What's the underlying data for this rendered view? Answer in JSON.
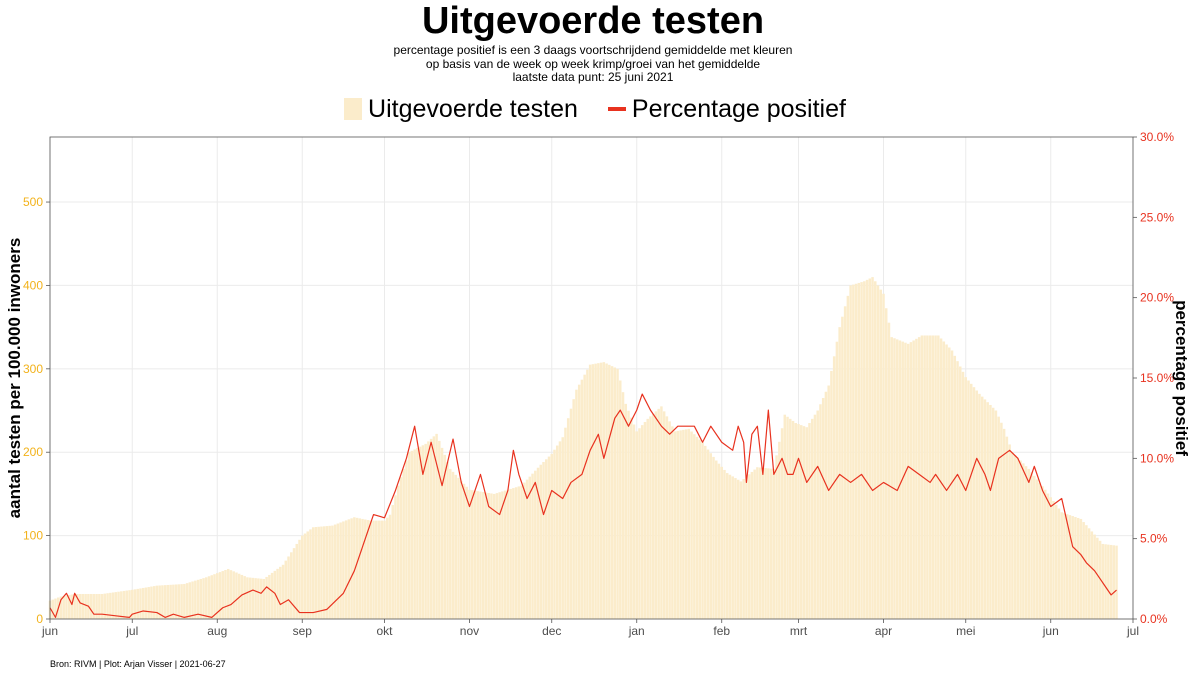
{
  "header": {
    "title": "Uitgevoerde testen",
    "subtitle_lines": [
      "percentage positief is een 3 daags voortschrijdend gemiddelde met kleuren",
      "op basis van de week op week krimp/groei van het gemiddelde",
      "laatste data punt: 25 juni 2021"
    ]
  },
  "legend": {
    "bars_label": "Uitgevoerde testen",
    "line_label": "Percentage positief"
  },
  "caption": "Bron: RIVM | Plot: Arjan Visser | 2021-06-27",
  "colors": {
    "bars": "#fbeccb",
    "line": "#e8321f",
    "left_axis_ticks": "#f2b21b",
    "right_axis_ticks": "#e8321f",
    "grid": "#ebebeb"
  },
  "chart_data": {
    "type": "bar+line",
    "x_axis": {
      "unit": "day",
      "start": "2020-06-01",
      "end": "2021-07-01",
      "tick_dates": [
        "2020-06-01",
        "2020-07-01",
        "2020-08-01",
        "2020-09-01",
        "2020-10-01",
        "2020-11-01",
        "2020-12-01",
        "2021-01-01",
        "2021-02-01",
        "2021-03-01",
        "2021-04-01",
        "2021-05-01",
        "2021-06-01",
        "2021-07-01"
      ],
      "tick_labels": [
        "jun",
        "jul",
        "aug",
        "sep",
        "okt",
        "nov",
        "dec",
        "jan",
        "feb",
        "mrt",
        "apr",
        "mei",
        "jun",
        "jul"
      ]
    },
    "y_left": {
      "label": "aantal testen per 100.000 inwoners",
      "ylim": [
        0,
        578
      ],
      "ticks": [
        0,
        100,
        200,
        300,
        400,
        500
      ],
      "tick_labels": [
        "0",
        "100",
        "200",
        "300",
        "400",
        "500"
      ]
    },
    "y_right": {
      "label": "percentage positief",
      "ylim": [
        0,
        30
      ],
      "ticks": [
        0,
        5,
        10,
        15,
        20,
        25,
        30
      ],
      "tick_labels": [
        "0.0%",
        "5.0%",
        "10.0%",
        "15.0%",
        "20.0%",
        "25.0%",
        "30.0%"
      ]
    },
    "grid": true,
    "legend_position": "top",
    "series": [
      {
        "name": "Uitgevoerde testen",
        "type": "bar",
        "axis": "left",
        "points": [
          [
            "2020-06-01",
            22
          ],
          [
            "2020-06-05",
            27
          ],
          [
            "2020-06-10",
            30
          ],
          [
            "2020-06-20",
            30
          ],
          [
            "2020-07-01",
            35
          ],
          [
            "2020-07-10",
            40
          ],
          [
            "2020-07-20",
            42
          ],
          [
            "2020-07-28",
            50
          ],
          [
            "2020-08-05",
            60
          ],
          [
            "2020-08-12",
            50
          ],
          [
            "2020-08-18",
            48
          ],
          [
            "2020-08-25",
            65
          ],
          [
            "2020-09-01",
            100
          ],
          [
            "2020-09-05",
            110
          ],
          [
            "2020-09-12",
            112
          ],
          [
            "2020-09-20",
            122
          ],
          [
            "2020-09-26",
            118
          ],
          [
            "2020-10-01",
            118
          ],
          [
            "2020-10-03",
            125
          ],
          [
            "2020-10-06",
            160
          ],
          [
            "2020-10-10",
            200
          ],
          [
            "2020-10-16",
            210
          ],
          [
            "2020-10-20",
            222
          ],
          [
            "2020-10-25",
            180
          ],
          [
            "2020-11-01",
            155
          ],
          [
            "2020-11-10",
            150
          ],
          [
            "2020-11-20",
            160
          ],
          [
            "2020-11-27",
            185
          ],
          [
            "2020-12-01",
            198
          ],
          [
            "2020-12-05",
            218
          ],
          [
            "2020-12-10",
            275
          ],
          [
            "2020-12-15",
            305
          ],
          [
            "2020-12-20",
            308
          ],
          [
            "2020-12-25",
            300
          ],
          [
            "2020-12-28",
            258
          ],
          [
            "2021-01-01",
            225
          ],
          [
            "2021-01-05",
            240
          ],
          [
            "2021-01-10",
            255
          ],
          [
            "2021-01-15",
            225
          ],
          [
            "2021-01-20",
            228
          ],
          [
            "2021-01-25",
            212
          ],
          [
            "2021-01-30",
            190
          ],
          [
            "2021-02-03",
            175
          ],
          [
            "2021-02-08",
            165
          ],
          [
            "2021-02-14",
            182
          ],
          [
            "2021-02-20",
            180
          ],
          [
            "2021-02-24",
            245
          ],
          [
            "2021-02-28",
            235
          ],
          [
            "2021-03-04",
            230
          ],
          [
            "2021-03-08",
            250
          ],
          [
            "2021-03-12",
            280
          ],
          [
            "2021-03-16",
            350
          ],
          [
            "2021-03-20",
            400
          ],
          [
            "2021-03-25",
            405
          ],
          [
            "2021-03-28",
            410
          ],
          [
            "2021-04-01",
            390
          ],
          [
            "2021-04-04",
            338
          ],
          [
            "2021-04-10",
            330
          ],
          [
            "2021-04-15",
            340
          ],
          [
            "2021-04-21",
            340
          ],
          [
            "2021-04-26",
            322
          ],
          [
            "2021-05-01",
            290
          ],
          [
            "2021-05-06",
            270
          ],
          [
            "2021-05-12",
            250
          ],
          [
            "2021-05-15",
            228
          ],
          [
            "2021-05-18",
            200
          ],
          [
            "2021-05-24",
            180
          ],
          [
            "2021-05-30",
            155
          ],
          [
            "2021-06-05",
            128
          ],
          [
            "2021-06-12",
            120
          ],
          [
            "2021-06-16",
            105
          ],
          [
            "2021-06-20",
            90
          ],
          [
            "2021-06-25",
            88
          ]
        ]
      },
      {
        "name": "Percentage positief",
        "type": "line",
        "axis": "right",
        "points": [
          [
            "2020-06-01",
            0.7
          ],
          [
            "2020-06-03",
            0.1
          ],
          [
            "2020-06-05",
            1.2
          ],
          [
            "2020-06-07",
            1.6
          ],
          [
            "2020-06-09",
            0.9
          ],
          [
            "2020-06-10",
            1.6
          ],
          [
            "2020-06-12",
            1.0
          ],
          [
            "2020-06-15",
            0.8
          ],
          [
            "2020-06-17",
            0.3
          ],
          [
            "2020-06-20",
            0.3
          ],
          [
            "2020-06-25",
            0.2
          ],
          [
            "2020-06-30",
            0.1
          ],
          [
            "2020-07-01",
            0.3
          ],
          [
            "2020-07-05",
            0.5
          ],
          [
            "2020-07-10",
            0.4
          ],
          [
            "2020-07-13",
            0.1
          ],
          [
            "2020-07-16",
            0.3
          ],
          [
            "2020-07-20",
            0.1
          ],
          [
            "2020-07-25",
            0.3
          ],
          [
            "2020-07-30",
            0.1
          ],
          [
            "2020-08-03",
            0.7
          ],
          [
            "2020-08-06",
            0.9
          ],
          [
            "2020-08-10",
            1.5
          ],
          [
            "2020-08-14",
            1.8
          ],
          [
            "2020-08-17",
            1.6
          ],
          [
            "2020-08-19",
            2.0
          ],
          [
            "2020-08-22",
            1.6
          ],
          [
            "2020-08-24",
            0.9
          ],
          [
            "2020-08-27",
            1.2
          ],
          [
            "2020-08-31",
            0.4
          ],
          [
            "2020-09-05",
            0.4
          ],
          [
            "2020-09-10",
            0.6
          ],
          [
            "2020-09-13",
            1.1
          ],
          [
            "2020-09-16",
            1.6
          ],
          [
            "2020-09-20",
            3.0
          ],
          [
            "2020-09-23",
            4.5
          ],
          [
            "2020-09-27",
            6.5
          ],
          [
            "2020-10-01",
            6.3
          ],
          [
            "2020-10-05",
            8.0
          ],
          [
            "2020-10-09",
            10.0
          ],
          [
            "2020-10-12",
            12.0
          ],
          [
            "2020-10-15",
            9.0
          ],
          [
            "2020-10-18",
            11.0
          ],
          [
            "2020-10-22",
            8.3
          ],
          [
            "2020-10-26",
            11.2
          ],
          [
            "2020-10-29",
            8.5
          ],
          [
            "2020-11-01",
            7.0
          ],
          [
            "2020-11-05",
            9.0
          ],
          [
            "2020-11-08",
            7.0
          ],
          [
            "2020-11-12",
            6.5
          ],
          [
            "2020-11-15",
            8.0
          ],
          [
            "2020-11-17",
            10.5
          ],
          [
            "2020-11-19",
            9.0
          ],
          [
            "2020-11-22",
            7.5
          ],
          [
            "2020-11-25",
            8.5
          ],
          [
            "2020-11-28",
            6.5
          ],
          [
            "2020-12-01",
            8.0
          ],
          [
            "2020-12-05",
            7.5
          ],
          [
            "2020-12-08",
            8.5
          ],
          [
            "2020-12-12",
            9.0
          ],
          [
            "2020-12-15",
            10.5
          ],
          [
            "2020-12-18",
            11.5
          ],
          [
            "2020-12-20",
            10.0
          ],
          [
            "2020-12-24",
            12.5
          ],
          [
            "2020-12-26",
            13.0
          ],
          [
            "2020-12-29",
            12.0
          ],
          [
            "2021-01-01",
            13.0
          ],
          [
            "2021-01-03",
            14.0
          ],
          [
            "2021-01-06",
            13.0
          ],
          [
            "2021-01-10",
            12.0
          ],
          [
            "2021-01-13",
            11.5
          ],
          [
            "2021-01-16",
            12.0
          ],
          [
            "2021-01-22",
            12.0
          ],
          [
            "2021-01-25",
            11.0
          ],
          [
            "2021-01-28",
            12.0
          ],
          [
            "2021-02-01",
            11.0
          ],
          [
            "2021-02-05",
            10.5
          ],
          [
            "2021-02-07",
            12.0
          ],
          [
            "2021-02-09",
            11.0
          ],
          [
            "2021-02-10",
            8.5
          ],
          [
            "2021-02-12",
            11.5
          ],
          [
            "2021-02-14",
            12.0
          ],
          [
            "2021-02-16",
            9.0
          ],
          [
            "2021-02-18",
            13.0
          ],
          [
            "2021-02-20",
            9.0
          ],
          [
            "2021-02-23",
            10.0
          ],
          [
            "2021-02-25",
            9.0
          ],
          [
            "2021-02-27",
            9.0
          ],
          [
            "2021-03-01",
            10.0
          ],
          [
            "2021-03-04",
            8.5
          ],
          [
            "2021-03-08",
            9.5
          ],
          [
            "2021-03-12",
            8.0
          ],
          [
            "2021-03-16",
            9.0
          ],
          [
            "2021-03-20",
            8.5
          ],
          [
            "2021-03-24",
            9.0
          ],
          [
            "2021-03-28",
            8.0
          ],
          [
            "2021-04-01",
            8.5
          ],
          [
            "2021-04-06",
            8.0
          ],
          [
            "2021-04-10",
            9.5
          ],
          [
            "2021-04-14",
            9.0
          ],
          [
            "2021-04-18",
            8.5
          ],
          [
            "2021-04-20",
            9.0
          ],
          [
            "2021-04-24",
            8.0
          ],
          [
            "2021-04-28",
            9.0
          ],
          [
            "2021-05-01",
            8.0
          ],
          [
            "2021-05-05",
            10.0
          ],
          [
            "2021-05-08",
            9.0
          ],
          [
            "2021-05-10",
            8.0
          ],
          [
            "2021-05-13",
            10.0
          ],
          [
            "2021-05-17",
            10.5
          ],
          [
            "2021-05-20",
            10.0
          ],
          [
            "2021-05-24",
            8.5
          ],
          [
            "2021-05-26",
            9.5
          ],
          [
            "2021-05-29",
            8.0
          ],
          [
            "2021-06-01",
            7.0
          ],
          [
            "2021-06-05",
            7.5
          ],
          [
            "2021-06-09",
            4.5
          ],
          [
            "2021-06-12",
            4.0
          ],
          [
            "2021-06-14",
            3.5
          ],
          [
            "2021-06-17",
            3.0
          ],
          [
            "2021-06-19",
            2.5
          ],
          [
            "2021-06-21",
            2.0
          ],
          [
            "2021-06-23",
            1.5
          ],
          [
            "2021-06-25",
            1.8
          ]
        ]
      }
    ]
  }
}
